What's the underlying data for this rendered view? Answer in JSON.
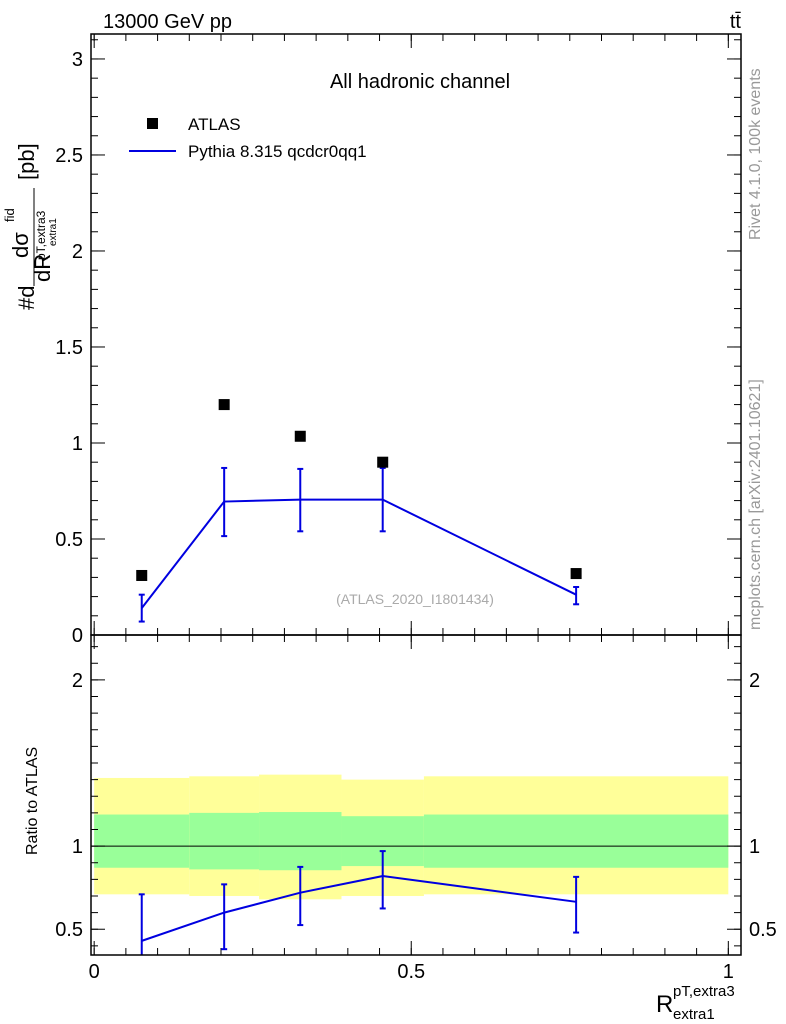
{
  "header": {
    "energy_label": "13000 GeV pp",
    "process_label": "tt̄"
  },
  "side_labels": {
    "rivet": "Rivet 4.1.0,  100k events",
    "mcplots": "mcplots.cern.ch [arXiv:2401.10621]"
  },
  "colors": {
    "data_marker": "#000000",
    "mc_line": "#0000e0",
    "band_outer": "#ffff99",
    "band_inner": "#99ff99"
  },
  "chart_data": [
    {
      "type": "scatter",
      "panel": "main",
      "title": "All hadronic channel",
      "annotation": "(ATLAS_2020_I1801434)",
      "ylabel": {
        "prefix": "#d",
        "numer": "dσ",
        "numer_sup": "fid",
        "sub_small": "pT,extra3",
        "denom": "dR",
        "denom_sub": "extra1",
        "unit": "[pb]"
      },
      "ylim": [
        0,
        3.13
      ],
      "yticks": [
        {
          "v": 0,
          "label": "0"
        },
        {
          "v": 0.5,
          "label": "0.5"
        },
        {
          "v": 1,
          "label": "1"
        },
        {
          "v": 1.5,
          "label": "1.5"
        },
        {
          "v": 2,
          "label": "2"
        },
        {
          "v": 2.5,
          "label": "2.5"
        },
        {
          "v": 3,
          "label": "3"
        }
      ],
      "legend": [
        {
          "name": "ATLAS",
          "kind": "marker"
        },
        {
          "name": "Pythia 8.315 qcdcr0qq1",
          "kind": "line"
        }
      ],
      "data_points": [
        {
          "x": 0.075,
          "y": 0.31
        },
        {
          "x": 0.205,
          "y": 1.2
        },
        {
          "x": 0.325,
          "y": 1.035
        },
        {
          "x": 0.455,
          "y": 0.9
        },
        {
          "x": 0.76,
          "y": 0.32
        }
      ],
      "mc_points": [
        {
          "x": 0.075,
          "y": 0.14,
          "lo": 0.07,
          "hi": 0.21
        },
        {
          "x": 0.205,
          "y": 0.695,
          "lo": 0.515,
          "hi": 0.87
        },
        {
          "x": 0.325,
          "y": 0.705,
          "lo": 0.54,
          "hi": 0.865
        },
        {
          "x": 0.455,
          "y": 0.705,
          "lo": 0.54,
          "hi": 0.87
        },
        {
          "x": 0.76,
          "y": 0.21,
          "lo": 0.16,
          "hi": 0.25
        }
      ]
    },
    {
      "type": "line",
      "panel": "ratio",
      "ylabel": "Ratio to ATLAS",
      "ylim": [
        0.345,
        2.27
      ],
      "yticks": [
        {
          "v": 0.5,
          "label": "0.5"
        },
        {
          "v": 1,
          "label": "1"
        },
        {
          "v": 2,
          "label": "2"
        }
      ],
      "xlim": [
        -0.005,
        1.02
      ],
      "xticks": [
        {
          "v": 0,
          "label": "0"
        },
        {
          "v": 0.5,
          "label": "0.5"
        },
        {
          "v": 1,
          "label": "1"
        }
      ],
      "xlabel": {
        "main": "R",
        "sup": "pT,extra3",
        "sub": "extra1"
      },
      "bands": [
        {
          "x0": 0.0,
          "x1": 0.15,
          "outer_lo": 0.71,
          "outer_hi": 1.41,
          "inner_lo": 0.87,
          "inner_hi": 1.19
        },
        {
          "x0": 0.15,
          "x1": 0.26,
          "outer_lo": 0.7,
          "outer_hi": 1.42,
          "inner_lo": 0.86,
          "inner_hi": 1.2
        },
        {
          "x0": 0.26,
          "x1": 0.39,
          "outer_lo": 0.68,
          "outer_hi": 1.43,
          "inner_lo": 0.855,
          "inner_hi": 1.205
        },
        {
          "x0": 0.39,
          "x1": 0.52,
          "outer_lo": 0.7,
          "outer_hi": 1.4,
          "inner_lo": 0.88,
          "inner_hi": 1.18
        },
        {
          "x0": 0.52,
          "x1": 1.0,
          "outer_lo": 0.71,
          "outer_hi": 1.42,
          "inner_lo": 0.87,
          "inner_hi": 1.19
        }
      ],
      "mc_points": [
        {
          "x": 0.075,
          "y": 0.43,
          "lo": 0.3,
          "hi": 0.71
        },
        {
          "x": 0.205,
          "y": 0.6,
          "lo": 0.38,
          "hi": 0.77
        },
        {
          "x": 0.325,
          "y": 0.72,
          "lo": 0.525,
          "hi": 0.875
        },
        {
          "x": 0.455,
          "y": 0.82,
          "lo": 0.625,
          "hi": 0.97
        },
        {
          "x": 0.76,
          "y": 0.665,
          "lo": 0.48,
          "hi": 0.815
        }
      ]
    }
  ]
}
